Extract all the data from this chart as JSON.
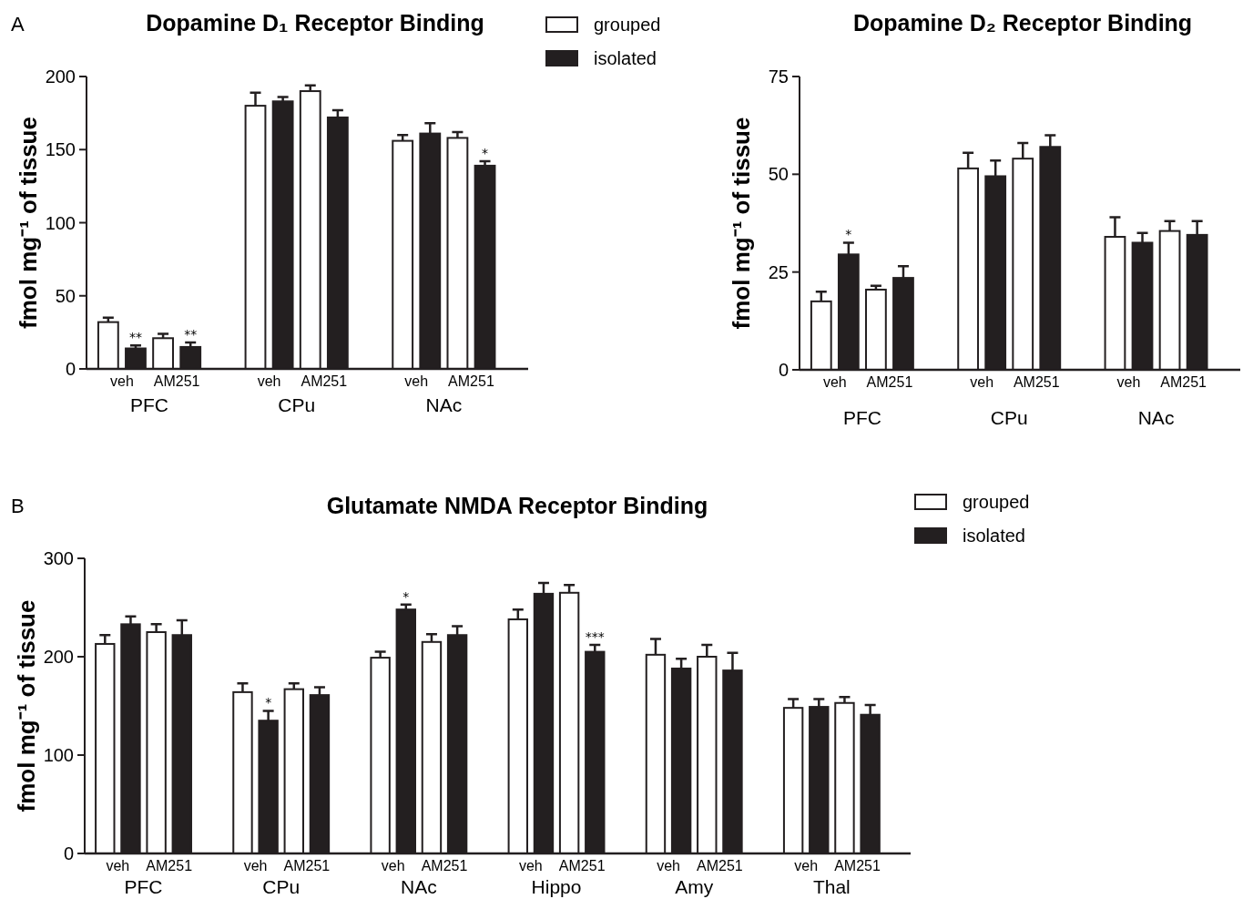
{
  "chart_data": [
    {
      "type": "bar",
      "title": "Dopamine D₁ Receptor Binding",
      "ylabel": "fmol mg⁻¹ of tissue",
      "categories": [
        "veh",
        "AM251",
        "veh",
        "AM251",
        "veh",
        "AM251"
      ],
      "ylim": [
        0,
        200
      ],
      "yticks": [
        0,
        50,
        100,
        150,
        200
      ],
      "legend": "top right",
      "annotations": [
        "PFC",
        "CPu",
        "NAc",
        "A"
      ],
      "series": [
        {
          "name": "grouped",
          "color": "#ffffff",
          "values": [
            32,
            21,
            180,
            190,
            156,
            158
          ],
          "errors": [
            3,
            3,
            9,
            4,
            4,
            4
          ]
        },
        {
          "name": "isolated",
          "color": "#231f20",
          "values": [
            14,
            15,
            183,
            172,
            161,
            139
          ],
          "errors": [
            2,
            3,
            3,
            5,
            7,
            3
          ],
          "value_labels": [
            "**",
            "**",
            null,
            null,
            null,
            "*"
          ]
        }
      ]
    },
    {
      "type": "bar",
      "title": "Dopamine D₂ Receptor Binding",
      "ylabel": "fmol mg⁻¹ of tissue",
      "categories": [
        "veh",
        "AM251",
        "veh",
        "AM251",
        "veh",
        "AM251"
      ],
      "ylim": [
        0,
        75
      ],
      "yticks": [
        0,
        25,
        50,
        75
      ],
      "annotations": [
        "PFC",
        "CPu",
        "NAc"
      ],
      "series": [
        {
          "color": "#ffffff",
          "values": [
            17.5,
            20.5,
            51.5,
            54,
            34,
            35.5
          ],
          "errors": [
            2.5,
            1,
            4,
            4,
            5,
            2.5
          ]
        },
        {
          "color": "#231f20",
          "values": [
            29.5,
            23.5,
            49.5,
            57,
            32.5,
            34.5
          ],
          "errors": [
            3,
            3,
            4,
            3,
            2.5,
            3.5
          ],
          "value_labels": [
            "*",
            null,
            null,
            null,
            null,
            null
          ]
        }
      ]
    },
    {
      "type": "bar",
      "title": "Glutamate NMDA Receptor Binding",
      "ylabel": "fmol mg⁻¹ of tissue",
      "categories": [
        "veh",
        "AM251",
        "veh",
        "AM251",
        "veh",
        "AM251",
        "veh",
        "AM251",
        "veh",
        "AM251",
        "veh",
        "AM251"
      ],
      "ylim": [
        0,
        300
      ],
      "yticks": [
        0,
        100,
        200,
        300
      ],
      "legend": "top right",
      "annotations": [
        "PFC",
        "CPu",
        "NAc",
        "Hippo",
        "Amy",
        "Thal",
        "B"
      ],
      "series": [
        {
          "name": "grouped",
          "color": "#ffffff",
          "values": [
            213,
            225,
            164,
            167,
            199,
            215,
            238,
            265,
            202,
            200,
            148,
            153
          ],
          "errors": [
            9,
            8,
            9,
            6,
            6,
            8,
            10,
            8,
            16,
            12,
            9,
            6
          ]
        },
        {
          "name": "isolated",
          "color": "#231f20",
          "values": [
            233,
            222,
            135,
            161,
            248,
            222,
            264,
            205,
            188,
            186,
            149,
            141
          ],
          "errors": [
            8,
            15,
            10,
            8,
            5,
            9,
            11,
            7,
            10,
            18,
            8,
            10
          ],
          "value_labels": [
            null,
            null,
            "*",
            null,
            "*",
            null,
            null,
            "***",
            null,
            null,
            null,
            null
          ]
        }
      ]
    }
  ]
}
